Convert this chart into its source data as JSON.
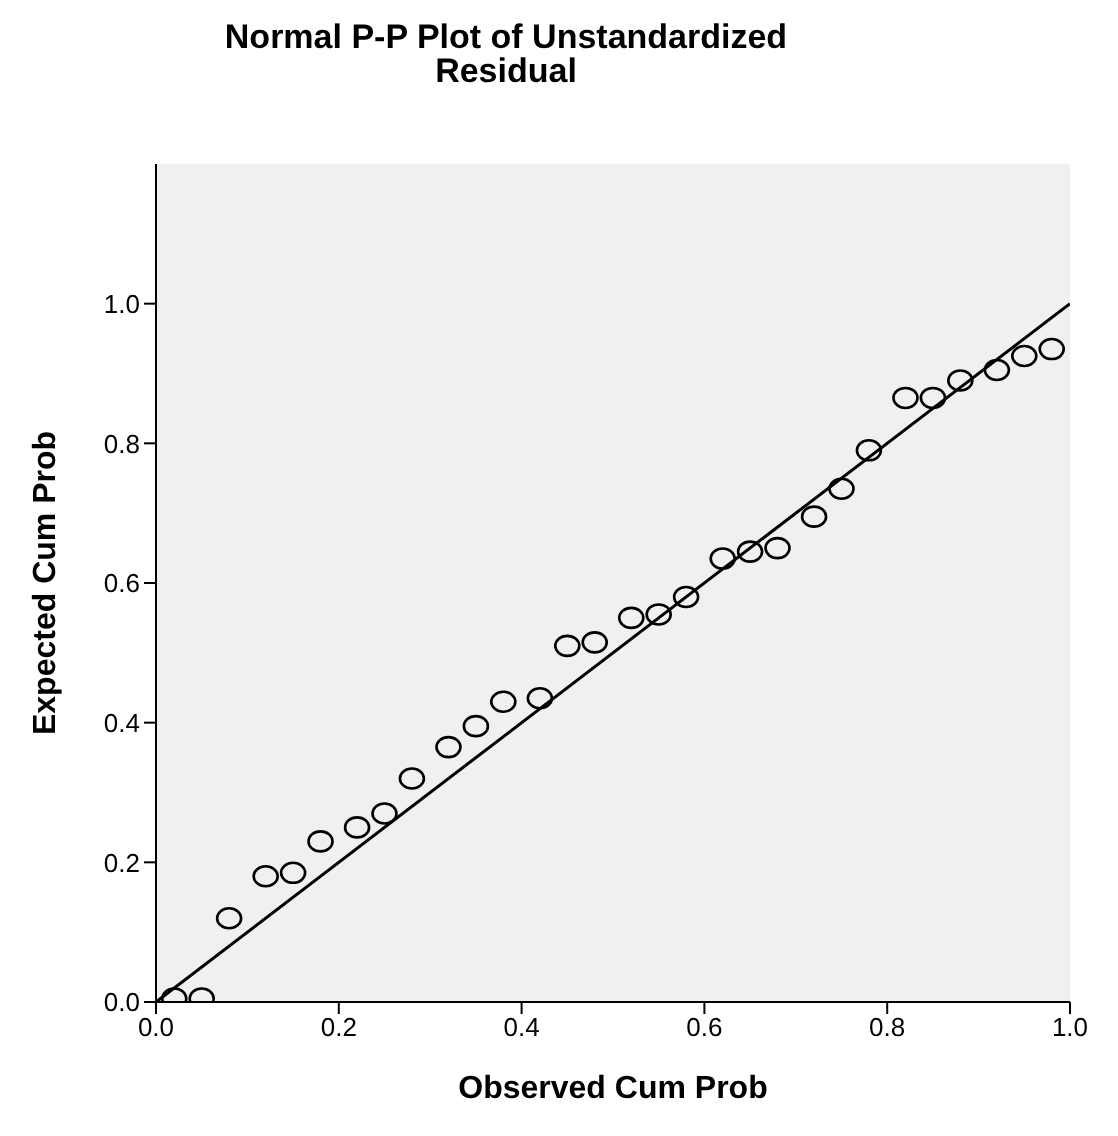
{
  "chart_data": {
    "type": "scatter",
    "title": "Normal P-P Plot of Unstandardized Residual",
    "xlabel": "Observed Cum Prob",
    "ylabel": "Expected Cum Prob",
    "x": [
      0.02,
      0.05,
      0.08,
      0.12,
      0.15,
      0.18,
      0.22,
      0.25,
      0.28,
      0.32,
      0.35,
      0.38,
      0.42,
      0.45,
      0.48,
      0.52,
      0.55,
      0.58,
      0.62,
      0.65,
      0.68,
      0.72,
      0.75,
      0.78,
      0.82,
      0.85,
      0.88,
      0.92,
      0.95,
      0.98
    ],
    "series": [
      {
        "color": "#000000",
        "marker": "circle",
        "values": [
          0.005,
          0.005,
          0.12,
          0.18,
          0.185,
          0.23,
          0.25,
          0.27,
          0.32,
          0.365,
          0.395,
          0.43,
          0.435,
          0.51,
          0.515,
          0.55,
          0.555,
          0.58,
          0.635,
          0.645,
          0.65,
          0.695,
          0.735,
          0.79,
          0.865,
          0.865,
          0.89,
          0.905,
          0.925,
          0.935
        ]
      },
      {
        "type": "line",
        "color": "#000000",
        "marker": "none",
        "x": [
          0,
          1
        ],
        "values": [
          0,
          1
        ]
      }
    ],
    "xlim": [
      0,
      1
    ],
    "ylim": [
      0,
      1.2
    ],
    "xticks": [
      {
        "value": 0,
        "label": "0.0"
      },
      {
        "value": 0.2,
        "label": "0.2"
      },
      {
        "value": 0.4,
        "label": "0.4"
      },
      {
        "value": 0.6,
        "label": "0.6"
      },
      {
        "value": 0.8,
        "label": "0.8"
      },
      {
        "value": 1,
        "label": "1.0"
      }
    ],
    "yticks": [
      {
        "value": 0,
        "label": "0.0"
      },
      {
        "value": 0.2,
        "label": "0.2"
      },
      {
        "value": 0.4,
        "label": "0.4"
      },
      {
        "value": 0.6,
        "label": "0.6"
      },
      {
        "value": 0.8,
        "label": "0.8"
      },
      {
        "value": 1,
        "label": "1.0"
      }
    ],
    "grid": false
  }
}
